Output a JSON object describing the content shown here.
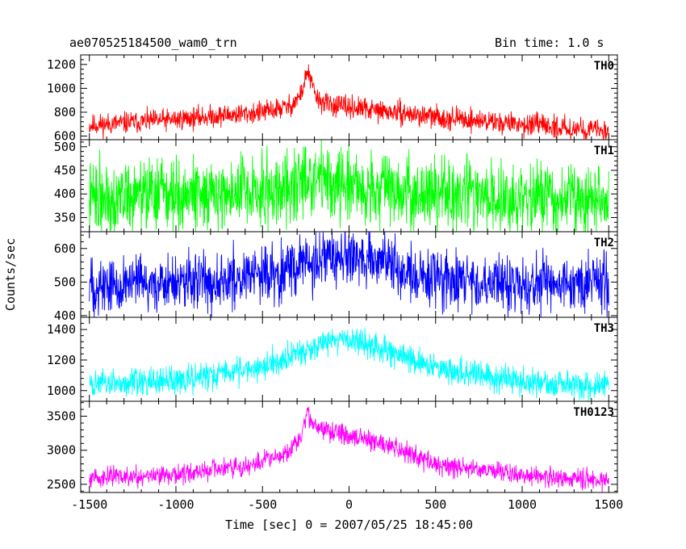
{
  "header": {
    "title": "ae070525184500_wam0_trn",
    "bin_time": "Bin time: 1.0 s"
  },
  "chart_data": {
    "type": "line",
    "xlabel": "Time [sec] 0 = 2007/05/25 18:45:00",
    "ylabel": "Counts/sec",
    "xlim": [
      -1550,
      1550
    ],
    "xticks": [
      -1500,
      -1000,
      -500,
      0,
      500,
      1000,
      1500
    ],
    "series_range": [
      -1500,
      1500
    ],
    "panels": [
      {
        "name": "TH0",
        "color": "#ff0000",
        "ylim": [
          570,
          1280
        ],
        "yticks": [
          600,
          800,
          1000,
          1200
        ],
        "baseline_x": [
          -1500,
          -1000,
          -500,
          -340,
          -280,
          -255,
          -240,
          -215,
          -180,
          -100,
          0,
          500,
          1000,
          1500
        ],
        "baseline_y": [
          690,
          740,
          800,
          850,
          940,
          1060,
          1150,
          1030,
          900,
          860,
          840,
          760,
          700,
          640
        ],
        "noise": 45,
        "seed": 11
      },
      {
        "name": "TH1",
        "color": "#00ff00",
        "ylim": [
          320,
          515
        ],
        "yticks": [
          350,
          400,
          450,
          500
        ],
        "baseline_x": [
          -1500,
          -500,
          -300,
          -250,
          -150,
          0,
          200,
          500,
          1000,
          1500
        ],
        "baseline_y": [
          395,
          405,
          420,
          440,
          430,
          420,
          410,
          400,
          395,
          393
        ],
        "noise": 38,
        "seed": 22
      },
      {
        "name": "TH2",
        "color": "#0000ff",
        "ylim": [
          395,
          650
        ],
        "yticks": [
          400,
          500,
          600
        ],
        "baseline_x": [
          -1500,
          -1000,
          -500,
          -200,
          0,
          200,
          300,
          500,
          1000,
          1500
        ],
        "baseline_y": [
          490,
          495,
          520,
          560,
          570,
          565,
          535,
          505,
          495,
          495
        ],
        "noise": 42,
        "seed": 33
      },
      {
        "name": "TH3",
        "color": "#00ffff",
        "ylim": [
          930,
          1480
        ],
        "yticks": [
          1000,
          1200,
          1400
        ],
        "baseline_x": [
          -1500,
          -1000,
          -500,
          -200,
          -50,
          100,
          500,
          1000,
          1500
        ],
        "baseline_y": [
          1040,
          1060,
          1160,
          1290,
          1345,
          1310,
          1150,
          1050,
          1030
        ],
        "noise": 45,
        "seed": 44
      },
      {
        "name": "TH0123",
        "color": "#ff00ff",
        "ylim": [
          2380,
          3720
        ],
        "yticks": [
          2500,
          3000,
          3500
        ],
        "baseline_x": [
          -1500,
          -1000,
          -600,
          -350,
          -280,
          -240,
          -200,
          -150,
          0,
          200,
          500,
          1000,
          1500
        ],
        "baseline_y": [
          2600,
          2640,
          2760,
          2950,
          3180,
          3550,
          3350,
          3300,
          3220,
          3100,
          2800,
          2640,
          2560
        ],
        "noise": 70,
        "seed": 55
      }
    ]
  }
}
